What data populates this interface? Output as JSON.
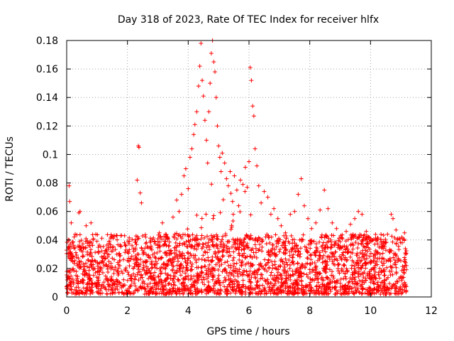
{
  "chart_data": {
    "type": "scatter",
    "title": "Day 318 of 2023, Rate Of TEC Index for receiver hlfx",
    "xlabel": "GPS time / hours",
    "ylabel": "ROTI / TECUs",
    "xlim": [
      0,
      12
    ],
    "ylim": [
      0,
      0.18
    ],
    "x_ticks": [
      0,
      2,
      4,
      6,
      8,
      10,
      12
    ],
    "x_tick_labels": [
      "0",
      "2",
      "4",
      "6",
      "8",
      "10",
      "12"
    ],
    "y_ticks": [
      0,
      0.02,
      0.04,
      0.06,
      0.08,
      0.1,
      0.12,
      0.14,
      0.16,
      0.18
    ],
    "y_tick_labels": [
      "0",
      "0.02",
      "0.04",
      "0.06",
      "0.08",
      "0.1",
      "0.12",
      "0.14",
      "0.16",
      "0.18"
    ],
    "grid": true,
    "marker": "+",
    "point_color": "#ff0000",
    "series": [
      {
        "points": [
          [
            0.02,
            0.012
          ],
          [
            0.05,
            0.018
          ],
          [
            0.08,
            0.078
          ],
          [
            0.1,
            0.067
          ],
          [
            0.12,
            0.03
          ],
          [
            0.15,
            0.052
          ],
          [
            0.2,
            0.025
          ],
          [
            0.28,
            0.044
          ],
          [
            0.35,
            0.022
          ],
          [
            0.4,
            0.059
          ],
          [
            0.44,
            0.06
          ],
          [
            0.5,
            0.035
          ],
          [
            0.58,
            0.018
          ],
          [
            0.64,
            0.05
          ],
          [
            0.7,
            0.026
          ],
          [
            0.8,
            0.052
          ],
          [
            0.88,
            0.041
          ],
          [
            0.95,
            0.017
          ],
          [
            1.05,
            0.032
          ],
          [
            1.2,
            0.024
          ],
          [
            1.35,
            0.028
          ],
          [
            1.5,
            0.021
          ],
          [
            1.65,
            0.03
          ],
          [
            1.8,
            0.018
          ],
          [
            1.95,
            0.033
          ],
          [
            2.05,
            0.025
          ],
          [
            2.15,
            0.036
          ],
          [
            2.25,
            0.04
          ],
          [
            2.32,
            0.082
          ],
          [
            2.36,
            0.106
          ],
          [
            2.38,
            0.105
          ],
          [
            2.42,
            0.073
          ],
          [
            2.46,
            0.066
          ],
          [
            2.52,
            0.03
          ],
          [
            2.6,
            0.042
          ],
          [
            2.75,
            0.034
          ],
          [
            2.9,
            0.028
          ],
          [
            3.05,
            0.045
          ],
          [
            3.15,
            0.052
          ],
          [
            3.25,
            0.044
          ],
          [
            3.38,
            0.03
          ],
          [
            3.5,
            0.056
          ],
          [
            3.62,
            0.068
          ],
          [
            3.7,
            0.06
          ],
          [
            3.78,
            0.072
          ],
          [
            3.86,
            0.085
          ],
          [
            3.92,
            0.09
          ],
          [
            4.0,
            0.076
          ],
          [
            4.06,
            0.098
          ],
          [
            4.12,
            0.104
          ],
          [
            4.18,
            0.114
          ],
          [
            4.22,
            0.121
          ],
          [
            4.28,
            0.13
          ],
          [
            4.34,
            0.148
          ],
          [
            4.38,
            0.162
          ],
          [
            4.42,
            0.178
          ],
          [
            4.46,
            0.152
          ],
          [
            4.5,
            0.141
          ],
          [
            4.55,
            0.124
          ],
          [
            4.6,
            0.11
          ],
          [
            4.64,
            0.094
          ],
          [
            4.68,
            0.13
          ],
          [
            4.72,
            0.15
          ],
          [
            4.76,
            0.171
          ],
          [
            4.8,
            0.18
          ],
          [
            4.84,
            0.165
          ],
          [
            4.88,
            0.158
          ],
          [
            4.92,
            0.14
          ],
          [
            4.96,
            0.12
          ],
          [
            5.0,
            0.106
          ],
          [
            5.04,
            0.098
          ],
          [
            5.08,
            0.088
          ],
          [
            5.12,
            0.101
          ],
          [
            5.2,
            0.094
          ],
          [
            5.26,
            0.083
          ],
          [
            5.32,
            0.078
          ],
          [
            5.38,
            0.088
          ],
          [
            5.46,
            0.067
          ],
          [
            5.52,
            0.085
          ],
          [
            5.6,
            0.075
          ],
          [
            5.66,
            0.064
          ],
          [
            5.72,
            0.082
          ],
          [
            5.8,
            0.079
          ],
          [
            5.88,
            0.091
          ],
          [
            5.94,
            0.077
          ],
          [
            6.0,
            0.095
          ],
          [
            6.04,
            0.161
          ],
          [
            6.08,
            0.152
          ],
          [
            6.12,
            0.134
          ],
          [
            6.16,
            0.127
          ],
          [
            6.2,
            0.104
          ],
          [
            6.26,
            0.092
          ],
          [
            6.32,
            0.078
          ],
          [
            6.4,
            0.066
          ],
          [
            6.5,
            0.074
          ],
          [
            6.62,
            0.07
          ],
          [
            6.72,
            0.058
          ],
          [
            6.82,
            0.062
          ],
          [
            6.95,
            0.055
          ],
          [
            7.06,
            0.05
          ],
          [
            7.2,
            0.045
          ],
          [
            7.36,
            0.058
          ],
          [
            7.5,
            0.06
          ],
          [
            7.62,
            0.072
          ],
          [
            7.72,
            0.083
          ],
          [
            7.82,
            0.064
          ],
          [
            7.94,
            0.055
          ],
          [
            8.06,
            0.048
          ],
          [
            8.2,
            0.052
          ],
          [
            8.34,
            0.061
          ],
          [
            8.48,
            0.075
          ],
          [
            8.6,
            0.062
          ],
          [
            8.74,
            0.052
          ],
          [
            8.88,
            0.048
          ],
          [
            9.02,
            0.043
          ],
          [
            9.2,
            0.046
          ],
          [
            9.34,
            0.051
          ],
          [
            9.48,
            0.055
          ],
          [
            9.6,
            0.06
          ],
          [
            9.72,
            0.058
          ],
          [
            9.86,
            0.046
          ],
          [
            10.0,
            0.041
          ],
          [
            10.14,
            0.037
          ],
          [
            10.28,
            0.035
          ],
          [
            10.42,
            0.039
          ],
          [
            10.56,
            0.044
          ],
          [
            10.68,
            0.058
          ],
          [
            10.74,
            0.055
          ],
          [
            10.84,
            0.047
          ],
          [
            10.94,
            0.041
          ],
          [
            11.04,
            0.038
          ],
          [
            11.12,
            0.045
          ],
          [
            11.16,
            0.03
          ],
          [
            11.18,
            0.022
          ]
        ]
      }
    ],
    "dense_band_y": [
      0.002,
      0.044
    ]
  }
}
